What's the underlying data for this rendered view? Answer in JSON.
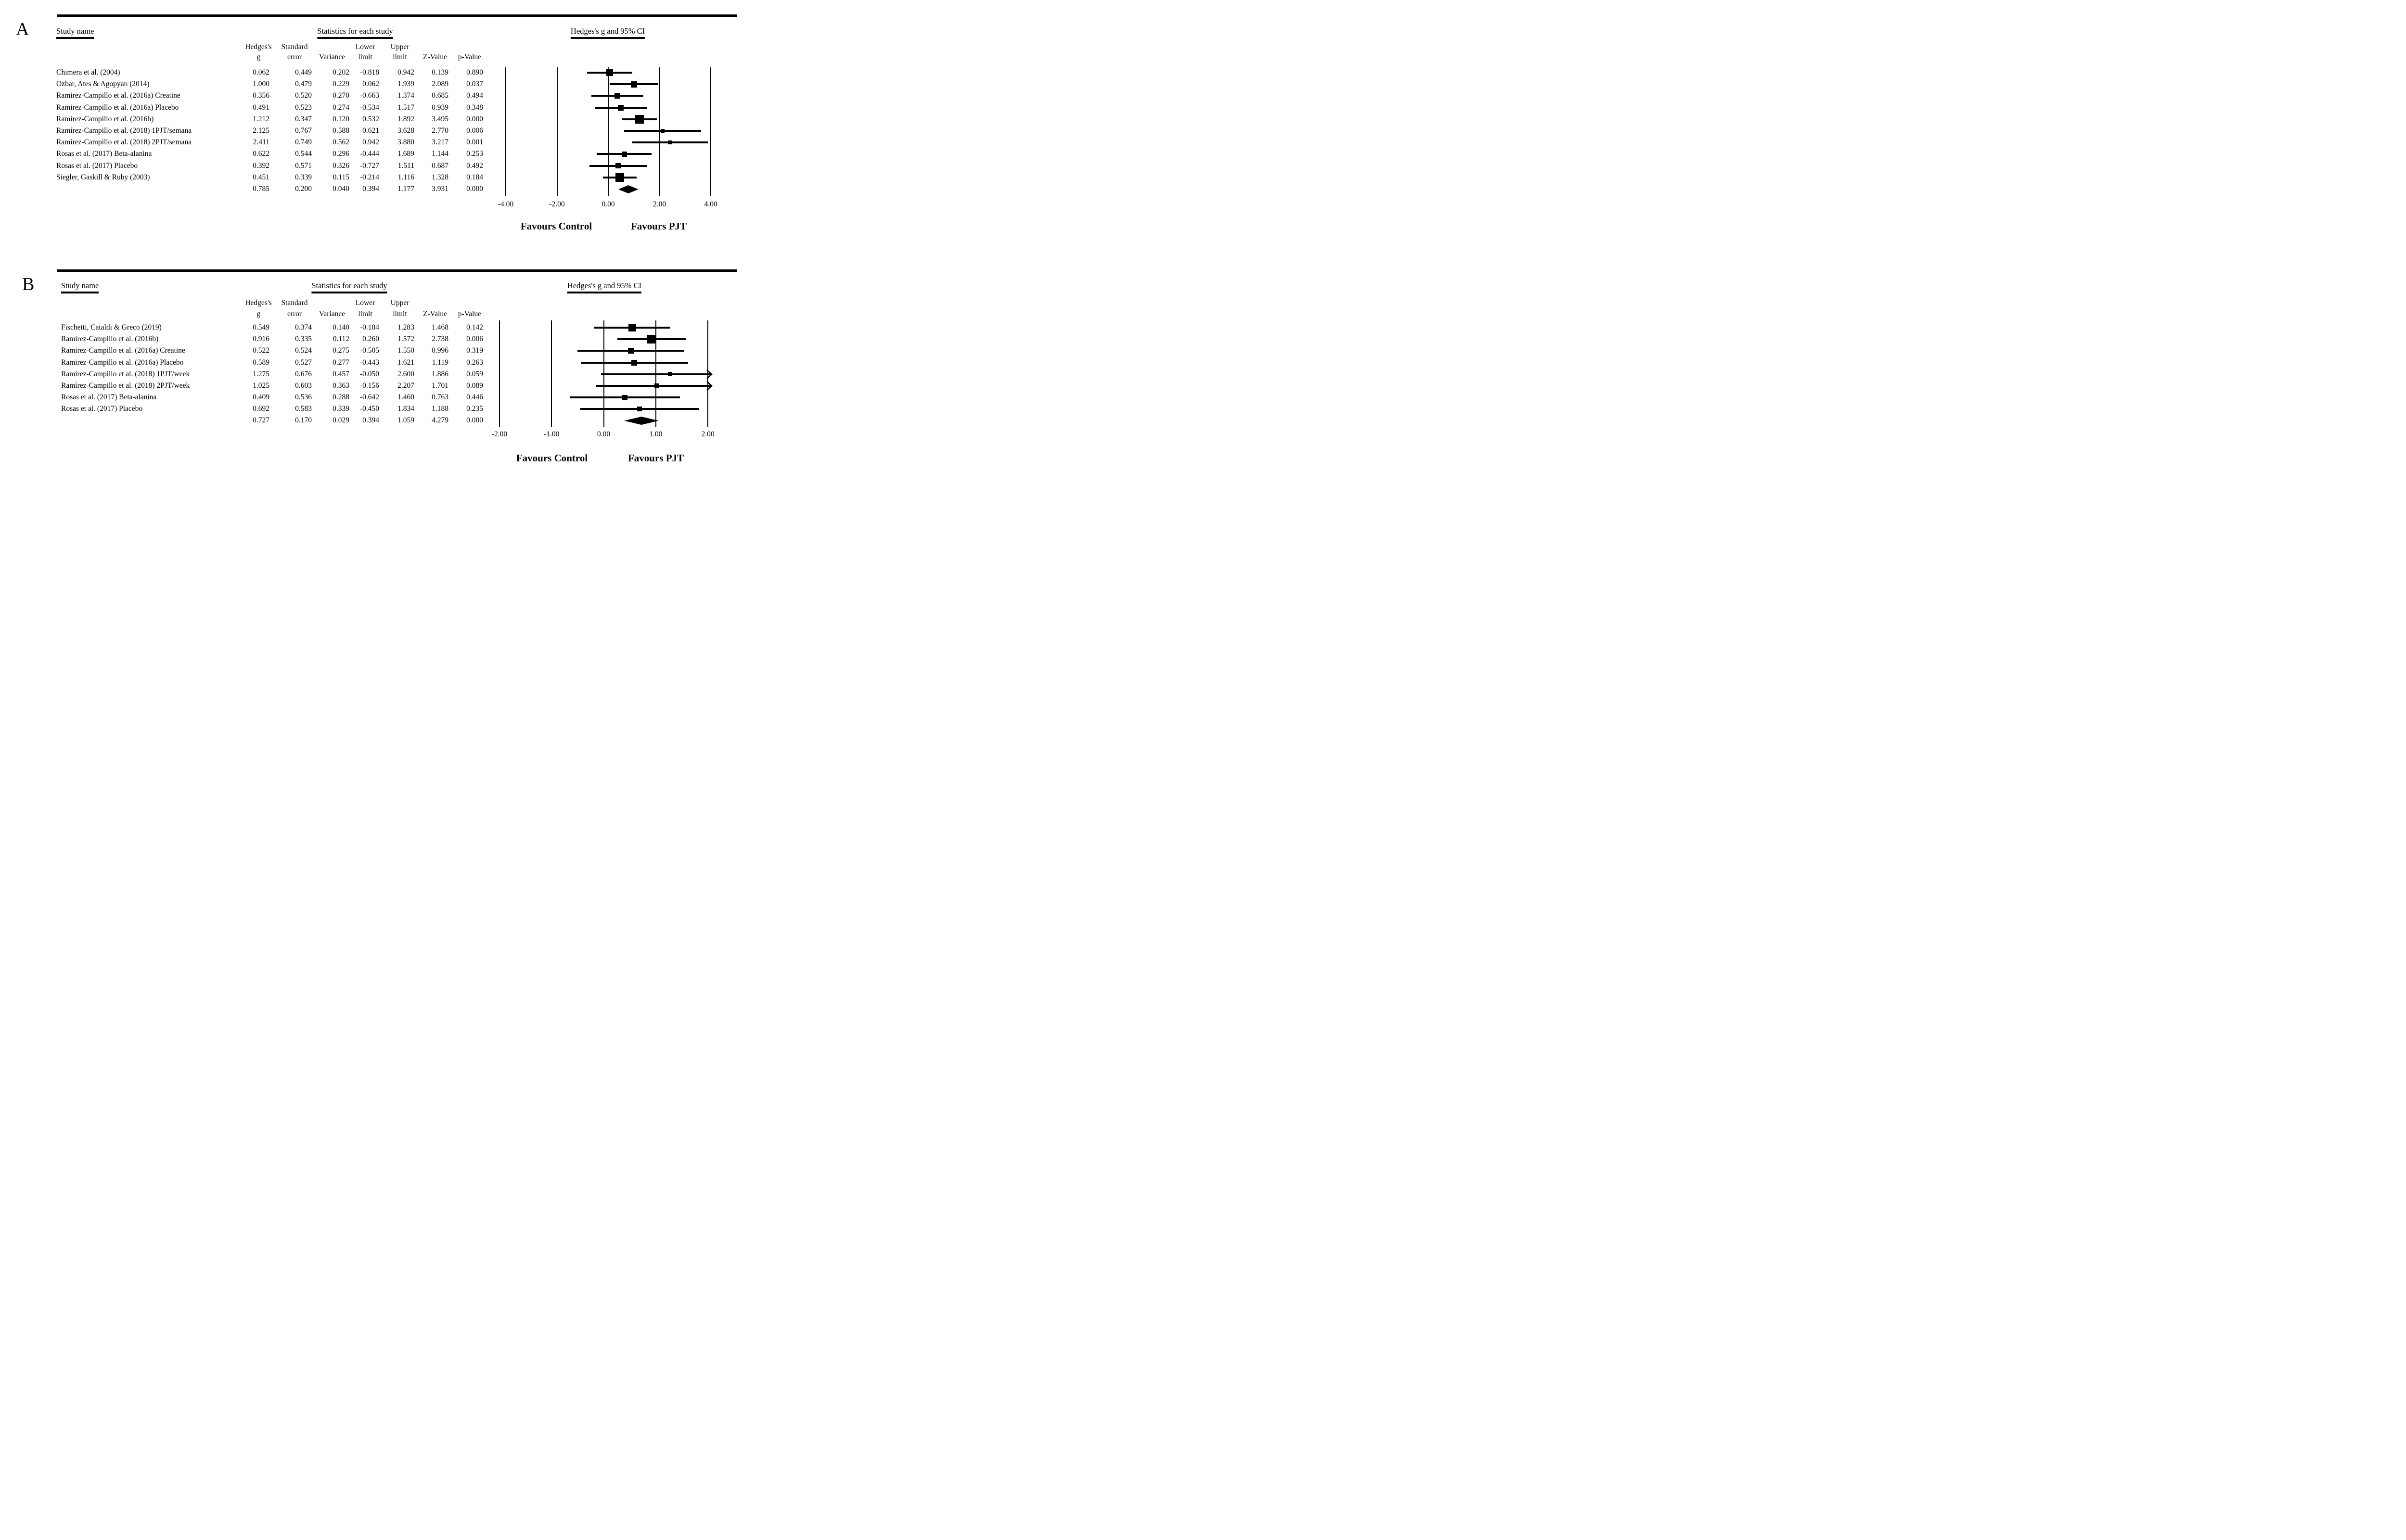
{
  "chart_data": [
    {
      "type": "forest",
      "panel_label": "A",
      "headers": {
        "study": "Study name",
        "stats": "Statistics for each study",
        "plot": "Hedges's g and 95% CI",
        "columns_top": [
          "Hedges's",
          "Standard",
          "Lower",
          "Upper"
        ],
        "columns_bottom": [
          "g",
          "error",
          "Variance",
          "limit",
          "limit",
          "Z-Value",
          "p-Value"
        ]
      },
      "studies": [
        {
          "name": "Chimera et al. (2004)",
          "g": "0.062",
          "se": "0.449",
          "var": "0.202",
          "lower": "-0.818",
          "upper": "0.942",
          "z": "0.139",
          "p": "0.890"
        },
        {
          "name": "Ozbar, Ates & Agopyan (2014)",
          "g": "1.000",
          "se": "0.479",
          "var": "0.229",
          "lower": "0.062",
          "upper": "1.939",
          "z": "2.089",
          "p": "0.037"
        },
        {
          "name": "Ramirez-Campillo et al. (2016a) Creatine",
          "g": "0.356",
          "se": "0.520",
          "var": "0.270",
          "lower": "-0.663",
          "upper": "1.374",
          "z": "0.685",
          "p": "0.494"
        },
        {
          "name": "Ramirez-Campillo et al. (2016a) Placebo",
          "g": "0.491",
          "se": "0.523",
          "var": "0.274",
          "lower": "-0.534",
          "upper": "1.517",
          "z": "0.939",
          "p": "0.348"
        },
        {
          "name": "Ramírez-Campillo et al. (2016b)",
          "g": "1.212",
          "se": "0.347",
          "var": "0.120",
          "lower": "0.532",
          "upper": "1.892",
          "z": "3.495",
          "p": "0.000"
        },
        {
          "name": "Ramírez-Campillo et al. (2018) 1PJT/semana",
          "g": "2.125",
          "se": "0.767",
          "var": "0.588",
          "lower": "0.621",
          "upper": "3.628",
          "z": "2.770",
          "p": "0.006"
        },
        {
          "name": "Ramírez-Campillo et al. (2018) 2PJT/semana",
          "g": "2.411",
          "se": "0.749",
          "var": "0.562",
          "lower": "0.942",
          "upper": "3.880",
          "z": "3.217",
          "p": "0.001"
        },
        {
          "name": "Rosas et al. (2017) Beta-alanina",
          "g": "0.622",
          "se": "0.544",
          "var": "0.296",
          "lower": "-0.444",
          "upper": "1.689",
          "z": "1.144",
          "p": "0.253"
        },
        {
          "name": "Rosas et al. (2017) Placebo",
          "g": "0.392",
          "se": "0.571",
          "var": "0.326",
          "lower": "-0.727",
          "upper": "1.511",
          "z": "0.687",
          "p": "0.492"
        },
        {
          "name": "Siegler, Gaskill & Ruby (2003)",
          "g": "0.451",
          "se": "0.339",
          "var": "0.115",
          "lower": "-0.214",
          "upper": "1.116",
          "z": "1.328",
          "p": "0.184"
        }
      ],
      "summary": {
        "g": "0.785",
        "se": "0.200",
        "var": "0.040",
        "lower": "0.394",
        "upper": "1.177",
        "z": "3.931",
        "p": "0.000"
      },
      "axis": {
        "min": -4,
        "max": 4,
        "ticks": [
          -4,
          -2,
          0,
          2,
          4
        ],
        "tick_labels": [
          "-4.00",
          "-2.00",
          "0.00",
          "2.00",
          "4.00"
        ]
      },
      "footer": {
        "left": "Favours Control",
        "right": "Favours PJT"
      }
    },
    {
      "type": "forest",
      "panel_label": "B",
      "headers": {
        "study": "Study name",
        "stats": "Statistics for each study",
        "plot": "Hedges's g and 95% CI",
        "columns_top": [
          "Hedges's",
          "Standard",
          "Lower",
          "Upper"
        ],
        "columns_bottom": [
          "g",
          "error",
          "Variance",
          "limit",
          "limit",
          "Z-Value",
          "p-Value"
        ]
      },
      "studies": [
        {
          "name": "Fischetti, Cataldi & Greco (2019)",
          "g": "0.549",
          "se": "0.374",
          "var": "0.140",
          "lower": "-0.184",
          "upper": "1.283",
          "z": "1.468",
          "p": "0.142"
        },
        {
          "name": "Ramírez-Campillo et al. (2016b)",
          "g": "0.916",
          "se": "0.335",
          "var": "0.112",
          "lower": "0.260",
          "upper": "1.572",
          "z": "2.738",
          "p": "0.006"
        },
        {
          "name": "Ramirez-Campillo et al. (2016a) Creatine",
          "g": "0.522",
          "se": "0.524",
          "var": "0.275",
          "lower": "-0.505",
          "upper": "1.550",
          "z": "0.996",
          "p": "0.319"
        },
        {
          "name": "Ramirez-Campillo et al. (2016a) Placebo",
          "g": "0.589",
          "se": "0.527",
          "var": "0.277",
          "lower": "-0.443",
          "upper": "1.621",
          "z": "1.119",
          "p": "0.263"
        },
        {
          "name": "Ramírez-Campillo et al. (2018) 1PJT/week",
          "g": "1.275",
          "se": "0.676",
          "var": "0.457",
          "lower": "-0.050",
          "upper": "2.600",
          "z": "1.886",
          "p": "0.059"
        },
        {
          "name": "Ramírez-Campillo et al. (2018) 2PJT/week",
          "g": "1.025",
          "se": "0.603",
          "var": "0.363",
          "lower": "-0.156",
          "upper": "2.207",
          "z": "1.701",
          "p": "0.089"
        },
        {
          "name": "Rosas et al. (2017) Beta-alanina",
          "g": "0.409",
          "se": "0.536",
          "var": "0.288",
          "lower": "-0.642",
          "upper": "1.460",
          "z": "0.763",
          "p": "0.446"
        },
        {
          "name": "Rosas et al. (2017) Placebo",
          "g": "0.692",
          "se": "0.583",
          "var": "0.339",
          "lower": "-0.450",
          "upper": "1.834",
          "z": "1.188",
          "p": "0.235"
        }
      ],
      "summary": {
        "g": "0.727",
        "se": "0.170",
        "var": "0.029",
        "lower": "0.394",
        "upper": "1.059",
        "z": "4.279",
        "p": "0.000"
      },
      "axis": {
        "min": -2,
        "max": 2,
        "ticks": [
          -2,
          -1,
          0,
          1,
          2
        ],
        "tick_labels": [
          "-2.00",
          "-1.00",
          "0.00",
          "1.00",
          "2.00"
        ]
      },
      "footer": {
        "left": "Favours Control",
        "right": "Favours PJT"
      }
    }
  ]
}
